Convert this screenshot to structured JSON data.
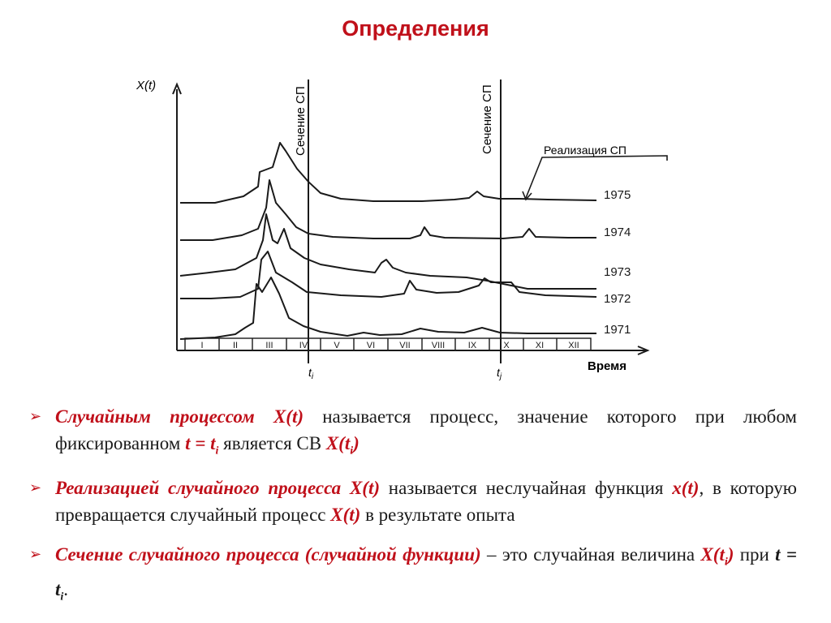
{
  "slide": {
    "title": "Определения"
  },
  "figure": {
    "y_axis_label": "X(t)",
    "x_axis_label": "Время",
    "section_labels": [
      "Сечение СП",
      "Сечение СП"
    ],
    "section_marks": [
      "t",
      "t"
    ],
    "section_mark_subs": [
      "i",
      "j"
    ],
    "realization_label": "Реализация СП",
    "years": [
      "1975",
      "1974",
      "1973",
      "1972",
      "1971"
    ],
    "months": [
      "I",
      "II",
      "III",
      "IV",
      "V",
      "VI",
      "VII",
      "VIII",
      "IX",
      "X",
      "XI",
      "XII"
    ]
  },
  "bullets": [
    {
      "term": "Случайным процессом X(t)",
      "text1": " называется процесс, значение которого при любом фиксированном ",
      "sym1": "t = t",
      "sym1_sub": "i",
      "text2": " является СВ ",
      "sym2": "X(t",
      "sym2_sub": "i",
      "sym2_end": ")"
    },
    {
      "term": "Реализацией случайного процесса X(t)",
      "text1": " называется неслучайная функция ",
      "sym1": "x(t)",
      "text2": ", в которую превращается случайный процесс ",
      "sym2": "X(t)",
      "text3": " в результате опыта"
    },
    {
      "term": "Сечение случайного процесса (случайной функции)",
      "text1": " – это случайная величина ",
      "sym1": "X(t",
      "sym1_sub": "i",
      "sym1_end": ")",
      "text2": " при ",
      "sym2": "t = t",
      "sym2_sub": "i",
      "text3": "."
    }
  ]
}
